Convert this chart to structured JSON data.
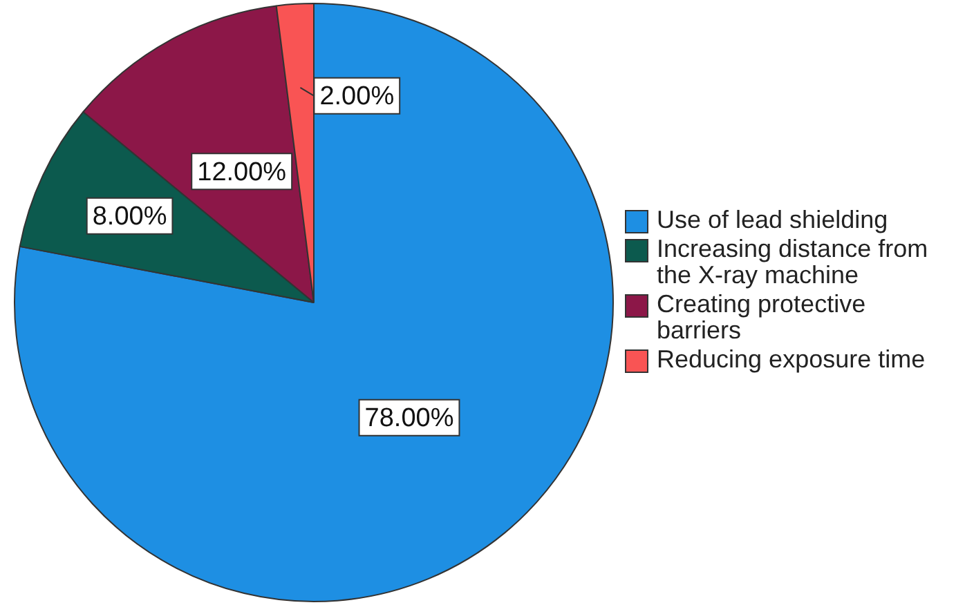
{
  "chart_data": {
    "type": "pie",
    "categories": [
      "Use of lead shielding",
      "Increasing distance from the X-ray machine",
      "Creating protective barriers",
      "Reducing exposure time"
    ],
    "values": [
      78,
      8,
      12,
      2
    ],
    "colors": [
      "#1e8fe3",
      "#0c5a4e",
      "#8c1748",
      "#f95454"
    ],
    "value_labels": [
      "78.00%",
      "8.00%",
      "12.00%",
      "2.00%"
    ],
    "legend": "right"
  }
}
